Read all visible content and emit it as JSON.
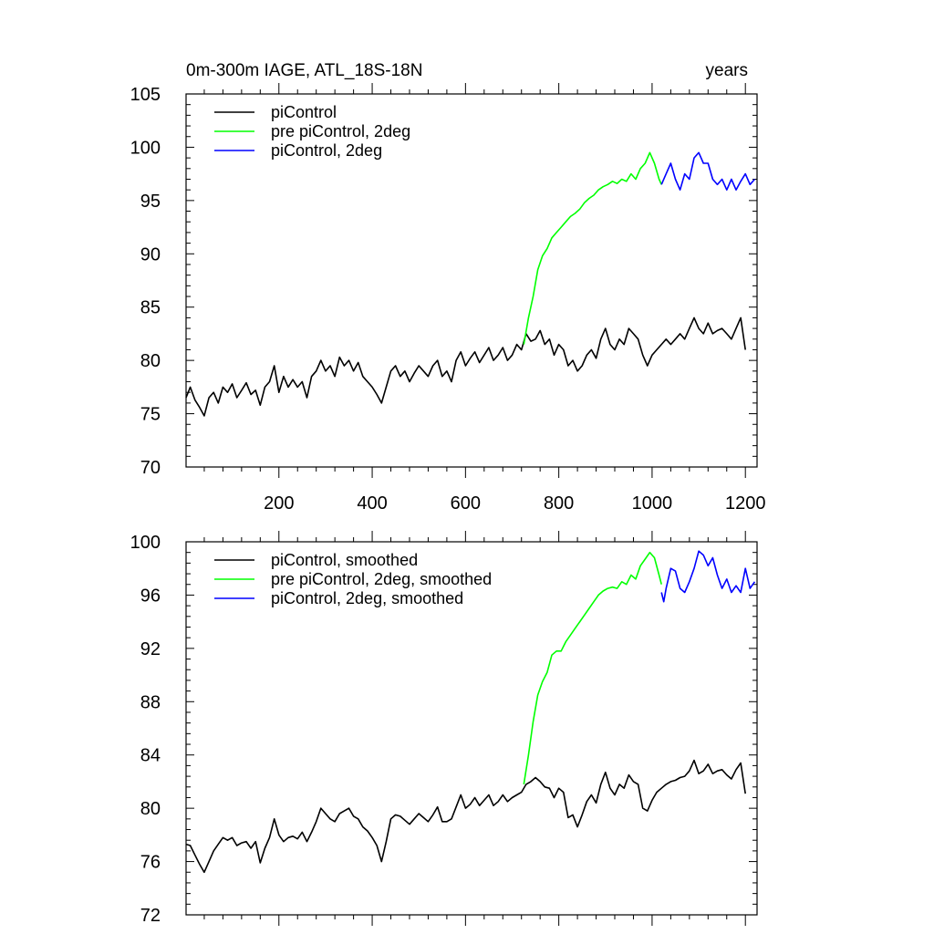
{
  "figure": {
    "title": "0m-300m IAGE, ATL_18S-18N",
    "units": "years"
  },
  "chart_data": [
    {
      "type": "line",
      "title": "0m-300m IAGE, ATL_18S-18N",
      "xlabel": "",
      "ylabel": "",
      "units_label": "years",
      "xlim": [
        1,
        1225
      ],
      "ylim": [
        70,
        105
      ],
      "xticks": [
        200,
        400,
        600,
        800,
        1000,
        1200
      ],
      "yticks": [
        70,
        75,
        80,
        85,
        90,
        95,
        100,
        105
      ],
      "grid": false,
      "legend": "top-left",
      "series": [
        {
          "name": "piControl",
          "color": "#000000",
          "x": [
            1,
            10,
            20,
            30,
            40,
            50,
            60,
            70,
            80,
            90,
            100,
            110,
            120,
            130,
            140,
            150,
            160,
            170,
            180,
            190,
            200,
            210,
            220,
            230,
            240,
            250,
            260,
            270,
            280,
            290,
            300,
            310,
            320,
            330,
            340,
            350,
            360,
            370,
            380,
            390,
            400,
            410,
            420,
            430,
            440,
            450,
            460,
            470,
            480,
            490,
            500,
            510,
            520,
            530,
            540,
            550,
            560,
            570,
            580,
            590,
            600,
            610,
            620,
            630,
            640,
            650,
            660,
            670,
            680,
            690,
            700,
            710,
            720,
            730,
            740,
            750,
            760,
            770,
            780,
            790,
            800,
            810,
            820,
            830,
            840,
            850,
            860,
            870,
            880,
            890,
            900,
            910,
            920,
            930,
            940,
            950,
            960,
            970,
            980,
            990,
            1000,
            1010,
            1020,
            1030,
            1040,
            1050,
            1060,
            1070,
            1080,
            1090,
            1100,
            1110,
            1120,
            1130,
            1140,
            1150,
            1160,
            1170,
            1180,
            1190,
            1200
          ],
          "y": [
            76.5,
            77.5,
            76.3,
            75.6,
            74.8,
            76.5,
            77.0,
            76.0,
            77.5,
            77.0,
            77.8,
            76.5,
            77.2,
            77.9,
            76.8,
            77.2,
            75.8,
            77.5,
            78.0,
            79.5,
            77.0,
            78.5,
            77.5,
            78.2,
            77.5,
            78.0,
            76.5,
            78.5,
            79.0,
            80.0,
            79.0,
            79.5,
            78.5,
            80.3,
            79.5,
            80.0,
            79.0,
            79.8,
            78.5,
            78.0,
            77.5,
            76.8,
            76.0,
            77.5,
            79.0,
            79.5,
            78.5,
            79.0,
            78.0,
            78.8,
            79.5,
            79.0,
            78.5,
            79.5,
            80.0,
            78.5,
            79.0,
            78.0,
            80.0,
            80.8,
            79.5,
            80.2,
            80.8,
            79.8,
            80.5,
            81.2,
            80.0,
            80.5,
            81.2,
            80.0,
            80.5,
            81.5,
            81.0,
            82.5,
            81.8,
            82.0,
            82.8,
            81.5,
            82.0,
            80.5,
            81.5,
            81.0,
            79.5,
            80.0,
            79.0,
            79.5,
            80.5,
            81.0,
            80.2,
            82.0,
            83.0,
            81.5,
            81.0,
            82.0,
            81.5,
            83.0,
            82.5,
            82.0,
            80.5,
            79.5,
            80.5,
            81.0,
            81.5,
            82.0,
            81.5,
            82.0,
            82.5,
            82.0,
            83.0,
            84.0,
            83.0,
            82.5,
            83.5,
            82.5,
            82.8,
            83.0,
            82.5,
            82.0,
            83.0,
            84.0,
            81.0
          ]
        },
        {
          "name": "pre piControl, 2deg",
          "color": "#00ff00",
          "x": [
            725,
            735,
            745,
            755,
            765,
            775,
            785,
            795,
            805,
            815,
            825,
            835,
            845,
            855,
            865,
            875,
            885,
            895,
            905,
            915,
            925,
            935,
            945,
            955,
            965,
            975,
            985,
            995,
            1005,
            1015,
            1020
          ],
          "y": [
            81.5,
            84.0,
            86.0,
            88.5,
            89.8,
            90.5,
            91.5,
            92.0,
            92.5,
            93.0,
            93.5,
            93.8,
            94.2,
            94.8,
            95.2,
            95.5,
            96.0,
            96.3,
            96.5,
            96.8,
            96.6,
            97.0,
            96.8,
            97.5,
            97.0,
            98.0,
            98.5,
            99.5,
            98.5,
            97.0,
            96.5
          ]
        },
        {
          "name": "piControl, 2deg",
          "color": "#0000ff",
          "x": [
            1020,
            1030,
            1040,
            1050,
            1060,
            1070,
            1080,
            1090,
            1100,
            1110,
            1120,
            1130,
            1140,
            1150,
            1160,
            1170,
            1180,
            1190,
            1200,
            1210,
            1220
          ],
          "y": [
            96.5,
            97.5,
            98.5,
            97.0,
            96.0,
            97.5,
            97.0,
            99.0,
            99.5,
            98.5,
            98.5,
            97.0,
            96.5,
            97.0,
            96.0,
            97.0,
            96.0,
            96.8,
            97.5,
            96.5,
            97.0
          ]
        }
      ]
    },
    {
      "type": "line",
      "title": "",
      "xlabel": "",
      "ylabel": "",
      "xlim": [
        1,
        1225
      ],
      "ylim": [
        72,
        100
      ],
      "xticks": [
        200,
        400,
        600,
        800,
        1000,
        1200
      ],
      "yticks": [
        72,
        76,
        80,
        84,
        88,
        92,
        96,
        100
      ],
      "grid": false,
      "legend": "top-left",
      "series": [
        {
          "name": "piControl, smoothed",
          "color": "#000000",
          "x": [
            1,
            10,
            20,
            30,
            40,
            50,
            60,
            70,
            80,
            90,
            100,
            110,
            120,
            130,
            140,
            150,
            160,
            170,
            180,
            190,
            200,
            210,
            220,
            230,
            240,
            250,
            260,
            270,
            280,
            290,
            300,
            310,
            320,
            330,
            340,
            350,
            360,
            370,
            380,
            390,
            400,
            410,
            420,
            430,
            440,
            450,
            460,
            470,
            480,
            490,
            500,
            510,
            520,
            530,
            540,
            550,
            560,
            570,
            580,
            590,
            600,
            610,
            620,
            630,
            640,
            650,
            660,
            670,
            680,
            690,
            700,
            710,
            720,
            730,
            740,
            750,
            760,
            770,
            780,
            790,
            800,
            810,
            820,
            830,
            840,
            850,
            860,
            870,
            880,
            890,
            900,
            910,
            920,
            930,
            940,
            950,
            960,
            970,
            980,
            990,
            1000,
            1010,
            1020,
            1030,
            1040,
            1050,
            1060,
            1070,
            1080,
            1090,
            1100,
            1110,
            1120,
            1130,
            1140,
            1150,
            1160,
            1170,
            1180,
            1190,
            1200
          ],
          "y": [
            77.3,
            77.2,
            76.5,
            75.8,
            75.2,
            76.0,
            76.8,
            77.3,
            77.8,
            77.6,
            77.8,
            77.2,
            77.4,
            77.5,
            77.0,
            77.5,
            75.9,
            77.0,
            77.8,
            79.2,
            78.0,
            77.5,
            77.8,
            77.9,
            77.7,
            78.2,
            77.5,
            78.2,
            79.0,
            80.0,
            79.6,
            79.2,
            79.0,
            79.6,
            79.8,
            80.0,
            79.4,
            79.2,
            78.6,
            78.3,
            77.8,
            77.2,
            76.0,
            77.5,
            79.2,
            79.5,
            79.4,
            79.1,
            78.8,
            79.2,
            79.6,
            79.3,
            79.0,
            79.5,
            80.1,
            79.0,
            79.0,
            79.2,
            80.1,
            81.0,
            80.0,
            80.3,
            80.8,
            80.2,
            80.6,
            81.0,
            80.2,
            80.5,
            81.0,
            80.5,
            80.8,
            81.0,
            81.2,
            81.8,
            82.0,
            82.3,
            82.0,
            81.6,
            81.5,
            80.8,
            81.5,
            81.2,
            79.3,
            79.5,
            78.6,
            79.5,
            80.5,
            81.0,
            80.4,
            81.8,
            82.7,
            81.5,
            81.0,
            81.8,
            81.5,
            82.5,
            82.0,
            81.8,
            80.0,
            79.8,
            80.6,
            81.2,
            81.5,
            81.8,
            82.0,
            82.1,
            82.3,
            82.4,
            82.8,
            83.6,
            82.6,
            82.8,
            83.3,
            82.6,
            82.8,
            82.9,
            82.5,
            82.2,
            82.9,
            83.4,
            81.1
          ]
        },
        {
          "name": "pre piControl, 2deg, smoothed",
          "color": "#00ff00",
          "x": [
            725,
            735,
            745,
            755,
            765,
            775,
            785,
            795,
            805,
            815,
            825,
            835,
            845,
            855,
            865,
            875,
            885,
            895,
            905,
            915,
            925,
            935,
            945,
            955,
            965,
            975,
            985,
            995,
            1005,
            1015,
            1020
          ],
          "y": [
            81.8,
            84.0,
            86.5,
            88.5,
            89.5,
            90.2,
            91.5,
            91.8,
            91.8,
            92.5,
            93.0,
            93.5,
            94.0,
            94.5,
            95.0,
            95.5,
            96.0,
            96.3,
            96.5,
            96.6,
            96.5,
            97.0,
            96.8,
            97.5,
            97.2,
            98.2,
            98.7,
            99.2,
            98.8,
            97.5,
            96.8
          ]
        },
        {
          "name": "piControl, 2deg, smoothed",
          "color": "#0000ff",
          "x": [
            1020,
            1025,
            1030,
            1040,
            1050,
            1060,
            1070,
            1080,
            1090,
            1100,
            1110,
            1120,
            1130,
            1140,
            1150,
            1160,
            1170,
            1180,
            1190,
            1200,
            1210,
            1220
          ],
          "y": [
            96.2,
            95.5,
            96.5,
            98.0,
            97.8,
            96.5,
            96.2,
            97.0,
            98.0,
            99.3,
            99.0,
            98.2,
            98.8,
            97.5,
            96.5,
            97.2,
            96.2,
            96.7,
            96.2,
            98.0,
            96.5,
            97.0
          ]
        }
      ]
    }
  ]
}
